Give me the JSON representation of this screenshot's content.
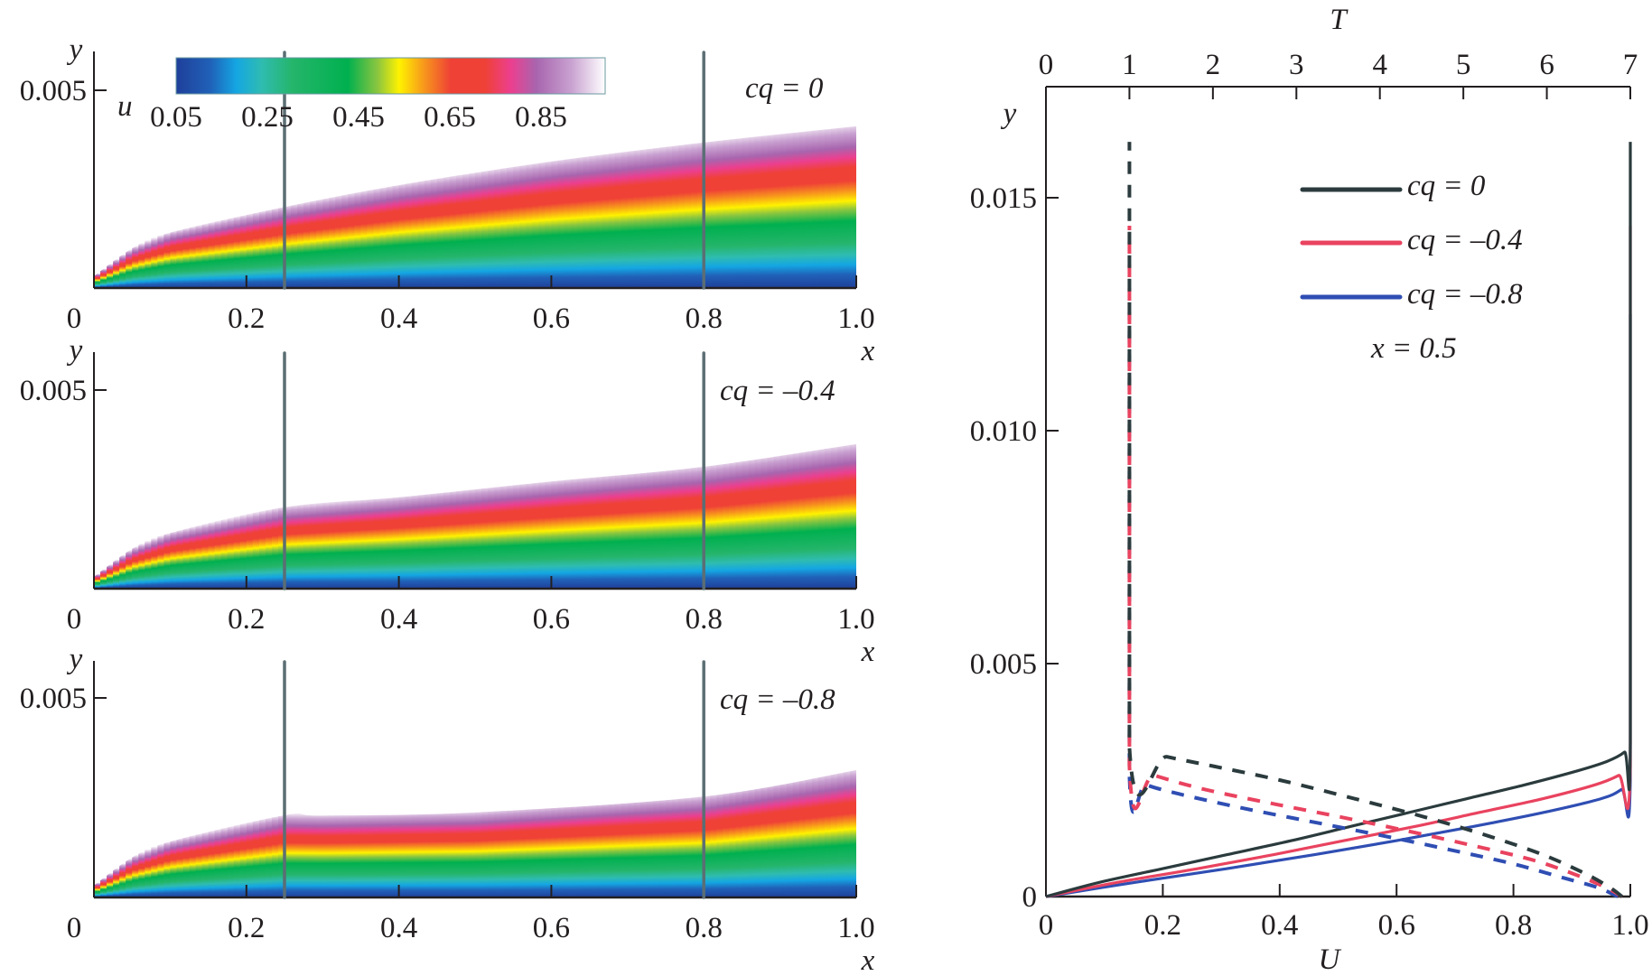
{
  "chart_data": [
    {
      "type": "heatmap",
      "panel": "contour-cq-0",
      "title": "cq = 0",
      "xlabel": "x",
      "ylabel": "y",
      "xlim": [
        0,
        1.0
      ],
      "ylim": [
        0,
        0.005
      ],
      "x_ticks": [
        "0",
        "0.2",
        "0.4",
        "0.6",
        "0.8",
        "1.0"
      ],
      "y_ticks": [
        "0.005"
      ],
      "vertical_markers_x": [
        0.25,
        0.8
      ],
      "boundary_layer_edge": {
        "x": [
          0,
          0.05,
          0.1,
          0.25,
          0.4,
          0.6,
          0.8,
          1.0
        ],
        "y": [
          0.0003,
          0.001,
          0.0014,
          0.00205,
          0.0026,
          0.0032,
          0.00368,
          0.00409
        ]
      }
    },
    {
      "type": "heatmap",
      "panel": "contour-cq-minus-0.4",
      "title": "cq = –0.4",
      "xlabel": "x",
      "ylabel": "y",
      "xlim": [
        0,
        1.0
      ],
      "ylim": [
        0,
        0.005
      ],
      "x_ticks": [
        "0",
        "0.2",
        "0.4",
        "0.6",
        "0.8",
        "1.0"
      ],
      "y_ticks": [
        "0.005"
      ],
      "vertical_markers_x": [
        0.25,
        0.8
      ],
      "boundary_layer_edge": {
        "x": [
          0,
          0.05,
          0.1,
          0.25,
          0.4,
          0.6,
          0.8,
          1.0
        ],
        "y": [
          0.0003,
          0.001,
          0.0014,
          0.00205,
          0.0023,
          0.0027,
          0.00307,
          0.00364
        ]
      }
    },
    {
      "type": "heatmap",
      "panel": "contour-cq-minus-0.8",
      "title": "cq = –0.8",
      "xlabel": "x",
      "ylabel": "y",
      "xlim": [
        0,
        1.0
      ],
      "ylim": [
        0,
        0.005
      ],
      "x_ticks": [
        "0",
        "0.2",
        "0.4",
        "0.6",
        "0.8",
        "1.0"
      ],
      "y_ticks": [
        "0.005"
      ],
      "vertical_markers_x": [
        0.25,
        0.8
      ],
      "boundary_layer_edge": {
        "x": [
          0,
          0.05,
          0.1,
          0.25,
          0.3,
          0.5,
          0.8,
          1.0
        ],
        "y": [
          0.0003,
          0.001,
          0.0014,
          0.00206,
          0.00205,
          0.00213,
          0.00253,
          0.00319
        ]
      }
    },
    {
      "type": "line",
      "panel": "profiles-x-0.5",
      "xlabel": "U",
      "x2label": "T",
      "ylabel": "y",
      "xlim": [
        0,
        1.0
      ],
      "x2lim": [
        0,
        7
      ],
      "ylim": [
        0,
        0.0168
      ],
      "x_ticks": [
        "0",
        "0.2",
        "0.4",
        "0.6",
        "0.8",
        "1.0"
      ],
      "x2_ticks": [
        "0",
        "1",
        "2",
        "3",
        "4",
        "5",
        "6",
        "7"
      ],
      "y_ticks": [
        "0",
        "0.005",
        "0.010",
        "0.015"
      ],
      "annotation": "x = 0.5",
      "legend_position": "top-right",
      "series": [
        {
          "name": "cq = 0",
          "variable": "U",
          "style": "solid",
          "color": "#2b3b3d",
          "y": [
            0,
            0.0003,
            0.0006,
            0.0009,
            0.0012,
            0.0015,
            0.0018,
            0.0021,
            0.0024,
            0.0027,
            0.0029,
            0.0031,
            0.0033,
            0.0162
          ],
          "x": [
            0,
            0.09,
            0.2,
            0.31,
            0.42,
            0.52,
            0.62,
            0.72,
            0.82,
            0.91,
            0.96,
            0.99,
            1.0,
            1.0
          ]
        },
        {
          "name": "cq = –0.4",
          "variable": "U",
          "style": "solid",
          "color": "#e9435f",
          "y": [
            0,
            0.0003,
            0.0006,
            0.0009,
            0.0012,
            0.0015,
            0.0018,
            0.0021,
            0.0024,
            0.0026,
            0.0028,
            0.0144
          ],
          "x": [
            0,
            0.12,
            0.26,
            0.39,
            0.51,
            0.63,
            0.74,
            0.85,
            0.94,
            0.98,
            1.0,
            1.0
          ]
        },
        {
          "name": "cq = –0.8",
          "variable": "U",
          "style": "solid",
          "color": "#2f4eb3",
          "y": [
            0,
            0.0003,
            0.0006,
            0.0009,
            0.0012,
            0.0015,
            0.0018,
            0.0021,
            0.0023,
            0.0025,
            0.0125
          ],
          "x": [
            0,
            0.15,
            0.31,
            0.46,
            0.6,
            0.73,
            0.85,
            0.95,
            0.985,
            1.0,
            1.0
          ]
        },
        {
          "name": "cq = 0 (T)",
          "variable": "T",
          "style": "dashed",
          "color": "#2b3b3d",
          "y": [
            0,
            0.0002,
            0.0005,
            0.0009,
            0.0013,
            0.0017,
            0.0021,
            0.0025,
            0.0028,
            0.003,
            0.0032,
            0.0162
          ],
          "x": [
            6.9,
            6.75,
            6.45,
            5.95,
            5.3,
            4.55,
            3.7,
            2.8,
            2.0,
            1.45,
            1.0,
            1.0
          ]
        },
        {
          "name": "cq = –0.4 (T)",
          "variable": "T",
          "style": "dashed",
          "color": "#e9435f",
          "y": [
            0,
            0.0002,
            0.0005,
            0.0008,
            0.0011,
            0.0014,
            0.0017,
            0.002,
            0.0023,
            0.0026,
            0.0028,
            0.0144
          ],
          "x": [
            6.9,
            6.7,
            6.3,
            5.8,
            5.1,
            4.35,
            3.55,
            2.7,
            1.9,
            1.3,
            1.0,
            1.0
          ]
        },
        {
          "name": "cq = –0.8 (T)",
          "variable": "T",
          "style": "dashed",
          "color": "#2f4eb3",
          "y": [
            0,
            0.0002,
            0.0004,
            0.0007,
            0.001,
            0.0013,
            0.0016,
            0.0019,
            0.0022,
            0.0024,
            0.0026,
            0.0125
          ],
          "x": [
            6.85,
            6.6,
            6.2,
            5.6,
            4.85,
            4.05,
            3.2,
            2.35,
            1.6,
            1.2,
            1.0,
            1.0
          ]
        }
      ]
    }
  ],
  "colorbar": {
    "label": "u",
    "tick_labels": [
      "0.05",
      "0.25",
      "0.45",
      "0.65",
      "0.85"
    ],
    "tick_values": [
      0.05,
      0.25,
      0.45,
      0.65,
      0.85
    ],
    "range": [
      0,
      1.0
    ],
    "stops": [
      {
        "v": 0.0,
        "c": "#1f3f9a"
      },
      {
        "v": 0.08,
        "c": "#2061b8"
      },
      {
        "v": 0.14,
        "c": "#14a6e3"
      },
      {
        "v": 0.2,
        "c": "#2fbcb0"
      },
      {
        "v": 0.27,
        "c": "#25b56b"
      },
      {
        "v": 0.4,
        "c": "#00b04f"
      },
      {
        "v": 0.47,
        "c": "#8cc63f"
      },
      {
        "v": 0.52,
        "c": "#fff200"
      },
      {
        "v": 0.58,
        "c": "#f7941d"
      },
      {
        "v": 0.64,
        "c": "#ef4136"
      },
      {
        "v": 0.72,
        "c": "#ef4136"
      },
      {
        "v": 0.78,
        "c": "#ec3f8f"
      },
      {
        "v": 0.84,
        "c": "#a865ae"
      },
      {
        "v": 0.92,
        "c": "#c8a0d0"
      },
      {
        "v": 1.0,
        "c": "#ffffff"
      }
    ]
  },
  "labels": {
    "panel1_cq": "cq = 0",
    "panel2_cq": "cq = –0.4",
    "panel3_cq": "cq = –0.8",
    "legend_1": "cq = 0",
    "legend_2": "cq = –0.4",
    "legend_3": "cq = –0.8",
    "annotation": "x = 0.5",
    "x_var": "x",
    "y_var": "y",
    "u_var": "u",
    "U_var": "U",
    "T_var": "T"
  }
}
